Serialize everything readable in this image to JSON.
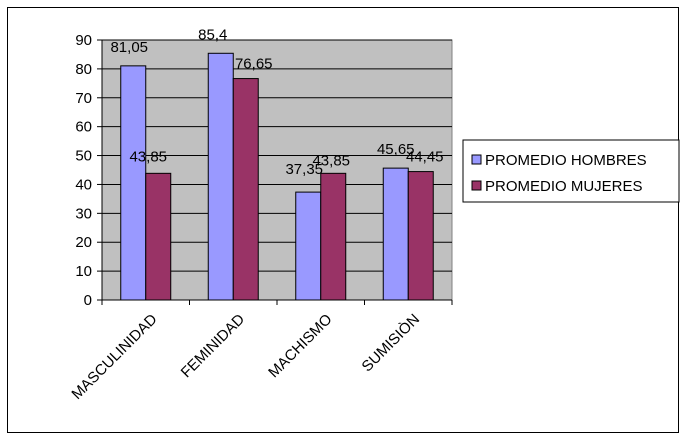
{
  "chart_data": {
    "type": "bar",
    "categories": [
      "MASCULINIDAD",
      "FEMINIDAD",
      "MACHISMO",
      "SUMISIÒN"
    ],
    "series": [
      {
        "name": "PROMEDIO HOMBRES",
        "values": [
          81.05,
          85.4,
          37.35,
          45.65
        ],
        "labels": [
          "81,05",
          "85,4",
          "37,35",
          "45,65"
        ],
        "color": "#9999ff"
      },
      {
        "name": "PROMEDIO MUJERES",
        "values": [
          43.85,
          76.65,
          43.85,
          44.45
        ],
        "labels": [
          "43,85",
          "76,65",
          "43,85",
          "44,45"
        ],
        "color": "#993366"
      }
    ],
    "yticks": [
      "0",
      "10",
      "20",
      "30",
      "40",
      "50",
      "60",
      "70",
      "80",
      "90"
    ],
    "ylim": [
      0,
      90
    ],
    "grid": true,
    "plot_background": "#c0c0c0",
    "legend_position": "right"
  }
}
